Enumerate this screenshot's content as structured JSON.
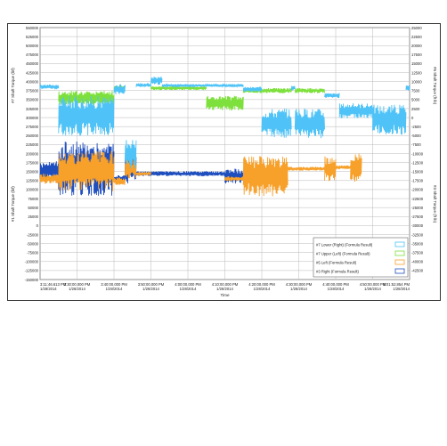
{
  "chart_data": {
    "type": "line",
    "title": "",
    "xlabel": "Time",
    "ylabel_left_top": "#7 Shaft Torque (lbf)",
    "ylabel_right_top": "#5 Shaft Torque (ft lb)",
    "ylabel_left_bottom": "#1 Shaft Torque (lbf)",
    "ylabel_right_bottom": "#3 Shaft Torque (ft lb)",
    "x_ticks": [
      {
        "time": "3:11:46.613 PM",
        "date": "1/28/2014"
      },
      {
        "time": "3:30:00.000 PM",
        "date": "1/28/2014"
      },
      {
        "time": "3:40:00.000 PM",
        "date": "1/28/2014"
      },
      {
        "time": "3:50:00.000 PM",
        "date": "1/28/2014"
      },
      {
        "time": "4:00:00.000 PM",
        "date": "1/28/2014"
      },
      {
        "time": "4:10:00.000 PM",
        "date": "1/28/2014"
      },
      {
        "time": "4:20:00.000 PM",
        "date": "1/28/2014"
      },
      {
        "time": "4:30:00.000 PM",
        "date": "1/28/2014"
      },
      {
        "time": "4:40:00.000 PM",
        "date": "1/28/2014"
      },
      {
        "time": "4:50:00.000 PM",
        "date": "1/28/2014"
      },
      {
        "time": "5:01:52.854 PM",
        "date": "1/28/2014"
      }
    ],
    "left_ticks_top": [
      "550000",
      "525000",
      "500000",
      "475000",
      "450000",
      "425000",
      "400000",
      "375000",
      "350000",
      "325000",
      "300000",
      "275000",
      "250000",
      "225000"
    ],
    "left_ticks_bottom": [
      "200000",
      "175000",
      "150000",
      "125000",
      "100000",
      "75000",
      "50000",
      "25000",
      "0",
      "-25000",
      "-50000",
      "-75000",
      "-100000",
      "-125000",
      "-150000"
    ],
    "right_ticks_top": [
      "25000",
      "22500",
      "20000",
      "17500",
      "15000",
      "12500",
      "10000",
      "7500",
      "5000",
      "2500",
      "0",
      "-2500",
      "-5000",
      "-7500"
    ],
    "right_ticks_bottom": [
      "-10000",
      "-12500",
      "-15000",
      "-17500",
      "-20000",
      "-22500",
      "-25000",
      "-27500",
      "-30000",
      "-32500",
      "-35000",
      "-37500",
      "-40000",
      "-42500"
    ],
    "grid": true,
    "legend_position": "bottom-right",
    "series": [
      {
        "name": "#7 Lower (Right) (Formula Result)",
        "color": "#4fc3f7",
        "segments": [
          {
            "t0": 0.0,
            "t1": 0.05,
            "level": 0.235,
            "amp": 0.01
          },
          {
            "t0": 0.05,
            "t1": 0.2,
            "level": 0.35,
            "amp": 0.08
          },
          {
            "t0": 0.2,
            "t1": 0.23,
            "level": 0.245,
            "amp": 0.02
          },
          {
            "t0": 0.23,
            "t1": 0.26,
            "level": 0.5,
            "amp": 0.06
          },
          {
            "t0": 0.26,
            "t1": 0.3,
            "level": 0.228,
            "amp": 0.008
          },
          {
            "t0": 0.3,
            "t1": 0.33,
            "level": 0.21,
            "amp": 0.018
          },
          {
            "t0": 0.33,
            "t1": 0.55,
            "level": 0.23,
            "amp": 0.006
          },
          {
            "t0": 0.55,
            "t1": 0.6,
            "level": 0.245,
            "amp": 0.01
          },
          {
            "t0": 0.6,
            "t1": 0.68,
            "level": 0.38,
            "amp": 0.06
          },
          {
            "t0": 0.68,
            "t1": 0.69,
            "level": 0.24,
            "amp": 0.01
          },
          {
            "t0": 0.69,
            "t1": 0.77,
            "level": 0.38,
            "amp": 0.06
          },
          {
            "t0": 0.77,
            "t1": 0.81,
            "level": 0.27,
            "amp": 0.01
          },
          {
            "t0": 0.81,
            "t1": 0.9,
            "level": 0.33,
            "amp": 0.03
          },
          {
            "t0": 0.9,
            "t1": 0.99,
            "level": 0.365,
            "amp": 0.06
          },
          {
            "t0": 0.99,
            "t1": 1.0,
            "level": 0.24,
            "amp": 0.01
          }
        ]
      },
      {
        "name": "#7 Upper (Left) (Formula Result)",
        "color": "#7ee03c",
        "segments": [
          {
            "t0": 0.05,
            "t1": 0.2,
            "level": 0.28,
            "amp": 0.03
          },
          {
            "t0": 0.2,
            "t1": 0.23,
            "level": 0.24,
            "amp": 0.01
          },
          {
            "t0": 0.3,
            "t1": 0.45,
            "level": 0.24,
            "amp": 0.008
          },
          {
            "t0": 0.45,
            "t1": 0.55,
            "level": 0.3,
            "amp": 0.03
          },
          {
            "t0": 0.55,
            "t1": 0.6,
            "level": 0.25,
            "amp": 0.01
          },
          {
            "t0": 0.6,
            "t1": 0.68,
            "level": 0.25,
            "amp": 0.01
          },
          {
            "t0": 0.69,
            "t1": 0.77,
            "level": 0.25,
            "amp": 0.01
          }
        ]
      },
      {
        "name": "#5 Left (Formula Result)",
        "color": "#f7a02a",
        "segments": [
          {
            "t0": 0.0,
            "t1": 0.05,
            "level": 0.6,
            "amp": 0.02
          },
          {
            "t0": 0.05,
            "t1": 0.2,
            "level": 0.57,
            "amp": 0.08
          },
          {
            "t0": 0.2,
            "t1": 0.23,
            "level": 0.61,
            "amp": 0.015
          },
          {
            "t0": 0.23,
            "t1": 0.26,
            "level": 0.56,
            "amp": 0.04
          },
          {
            "t0": 0.26,
            "t1": 0.3,
            "level": 0.58,
            "amp": 0.008
          },
          {
            "t0": 0.5,
            "t1": 0.55,
            "level": 0.6,
            "amp": 0.01
          },
          {
            "t0": 0.55,
            "t1": 0.67,
            "level": 0.59,
            "amp": 0.08
          },
          {
            "t0": 0.67,
            "t1": 0.77,
            "level": 0.56,
            "amp": 0.008
          },
          {
            "t0": 0.77,
            "t1": 0.8,
            "level": 0.56,
            "amp": 0.05
          },
          {
            "t0": 0.8,
            "t1": 0.84,
            "level": 0.555,
            "amp": 0.008
          },
          {
            "t0": 0.84,
            "t1": 0.87,
            "level": 0.555,
            "amp": 0.06
          }
        ]
      },
      {
        "name": "#3 Right (Formula Result)",
        "color": "#1f4fbf",
        "segments": [
          {
            "t0": 0.0,
            "t1": 0.05,
            "level": 0.57,
            "amp": 0.04
          },
          {
            "t0": 0.05,
            "t1": 0.2,
            "level": 0.56,
            "amp": 0.11
          },
          {
            "t0": 0.2,
            "t1": 0.23,
            "level": 0.6,
            "amp": 0.015
          },
          {
            "t0": 0.23,
            "t1": 0.26,
            "level": 0.56,
            "amp": 0.06
          },
          {
            "t0": 0.26,
            "t1": 0.5,
            "level": 0.58,
            "amp": 0.01
          },
          {
            "t0": 0.5,
            "t1": 0.55,
            "level": 0.59,
            "amp": 0.03
          }
        ]
      }
    ]
  }
}
